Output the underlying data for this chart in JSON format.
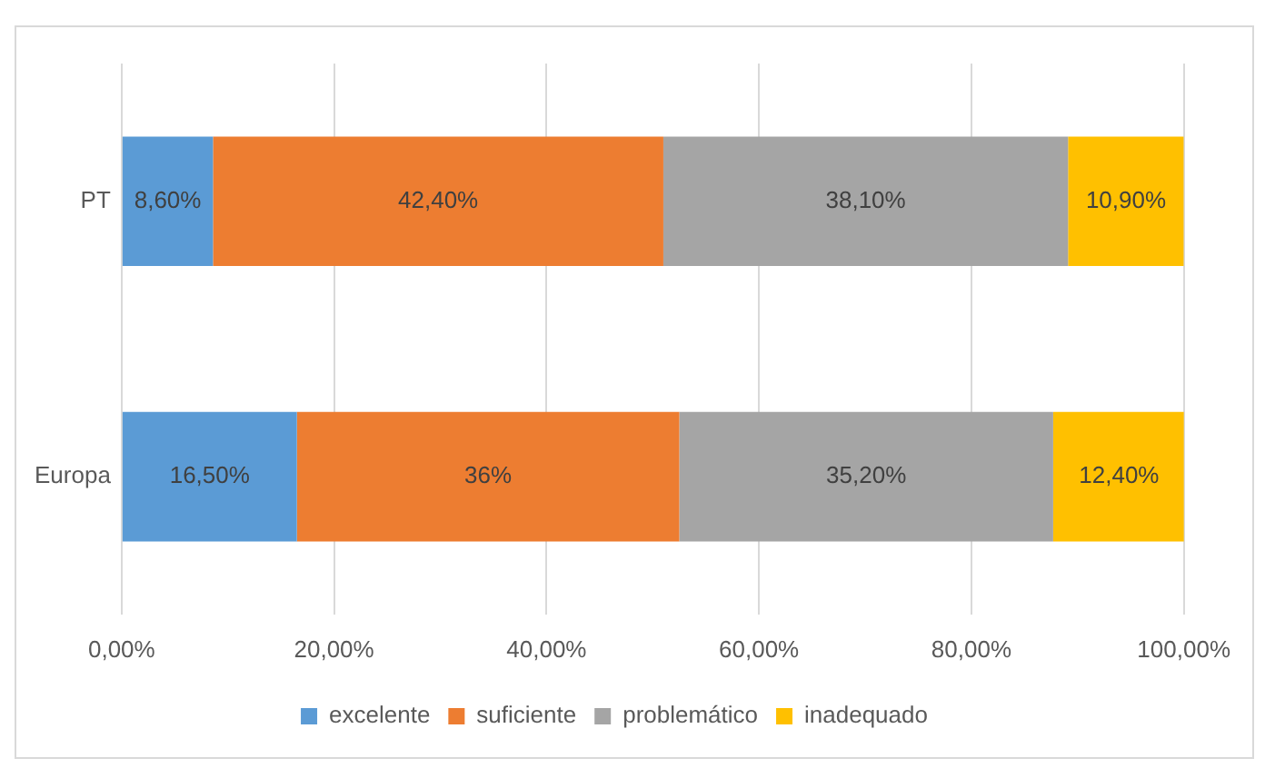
{
  "chart_data": {
    "type": "bar",
    "orientation": "horizontal",
    "stacked": true,
    "categories": [
      "PT",
      "Europa"
    ],
    "series": [
      {
        "name": "excelente",
        "color": "#5b9bd5",
        "values": [
          8.6,
          16.5
        ],
        "value_labels": [
          "8,60%",
          "16,50%"
        ]
      },
      {
        "name": "suficiente",
        "color": "#ed7d31",
        "values": [
          42.4,
          36
        ],
        "value_labels": [
          "42,40%",
          "36%"
        ]
      },
      {
        "name": "problemático",
        "color": "#a5a5a5",
        "values": [
          38.1,
          35.2
        ],
        "value_labels": [
          "38,10%",
          "35,20%"
        ]
      },
      {
        "name": "inadequado",
        "color": "#ffc000",
        "values": [
          10.9,
          12.4
        ],
        "value_labels": [
          "10,90%",
          "12,40%"
        ]
      }
    ],
    "xlim": [
      0,
      100
    ],
    "xticks": [
      {
        "value": 0,
        "label": "0,00%"
      },
      {
        "value": 20,
        "label": "20,00%"
      },
      {
        "value": 40,
        "label": "40,00%"
      },
      {
        "value": 60,
        "label": "60,00%"
      },
      {
        "value": 80,
        "label": "80,00%"
      },
      {
        "value": 100,
        "label": "100,00%"
      }
    ],
    "grid": "x",
    "legend": "bottom"
  }
}
